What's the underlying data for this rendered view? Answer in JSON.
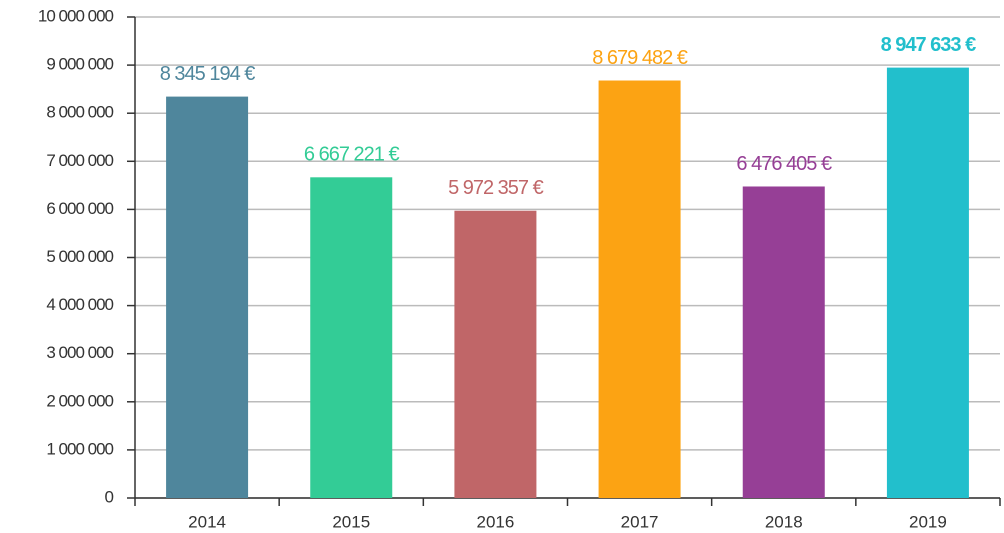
{
  "chart_data": {
    "type": "bar",
    "categories": [
      "2014",
      "2015",
      "2016",
      "2017",
      "2018",
      "2019"
    ],
    "values": [
      8345194,
      6667221,
      5972357,
      8679482,
      6476405,
      8947633
    ],
    "value_labels": [
      "8 345 194 €",
      "6 667 221 €",
      "5 972 357 €",
      "8 679 482 €",
      "6 476 405 €",
      "8 947 633 €"
    ],
    "colors": [
      "#4f869c",
      "#33cc96",
      "#c06668",
      "#fca313",
      "#963f96",
      "#22bfcc"
    ],
    "ylim": [
      0,
      10000000
    ],
    "yticks": [
      0,
      {
        "value": 1000000,
        "label": "1 000 000"
      },
      {
        "value": 2000000,
        "label": "2 000 000"
      },
      {
        "value": 3000000,
        "label": "3 000 000"
      },
      {
        "value": 4000000,
        "label": "4 000 000"
      },
      {
        "value": 5000000,
        "label": "5 000 000"
      },
      {
        "value": 6000000,
        "label": "6 000 000"
      },
      {
        "value": 7000000,
        "label": "7 000 000"
      },
      {
        "value": 8000000,
        "label": "8 000 000"
      },
      {
        "value": 9000000,
        "label": "9 000 000"
      },
      {
        "value": 10000000,
        "label": "10 000 000"
      }
    ],
    "grid": true
  }
}
